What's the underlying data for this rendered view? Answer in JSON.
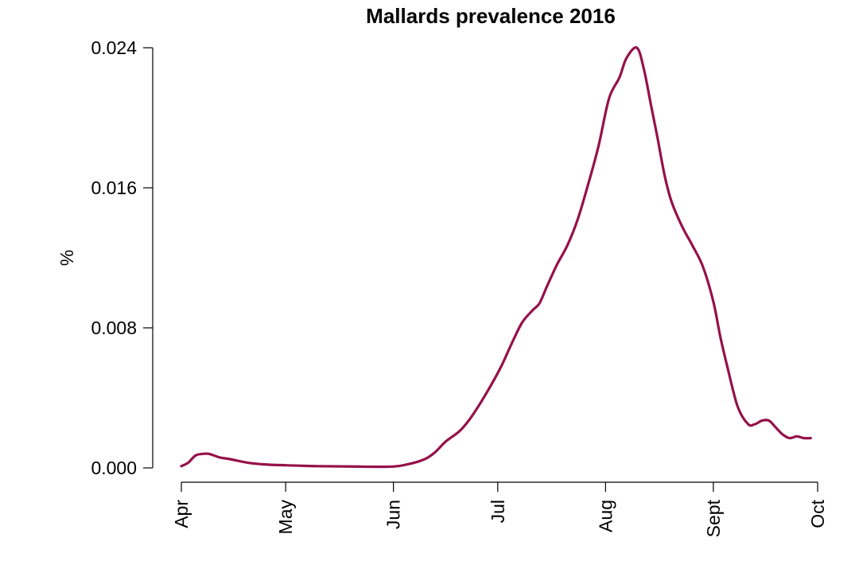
{
  "chart_data": {
    "type": "line",
    "title": "Mallards prevalence 2016",
    "xlabel": "",
    "ylabel": "%",
    "x_ticks": [
      "Apr",
      "May",
      "Jun",
      "Jul",
      "Aug",
      "Sept",
      "Oct"
    ],
    "x_tick_dates": [
      "2016-04-01",
      "2016-05-01",
      "2016-06-01",
      "2016-07-01",
      "2016-08-01",
      "2016-09-01",
      "2016-10-01"
    ],
    "y_ticks": [
      "0.000",
      "0.008",
      "0.016",
      "0.024"
    ],
    "y_tick_values": [
      0,
      0.008,
      0.016,
      0.024
    ],
    "xlim": [
      "2016-04-01",
      "2016-10-01"
    ],
    "ylim": [
      0,
      0.024
    ],
    "grid": false,
    "legend": "none",
    "color": "#95114a",
    "series": [
      {
        "x": [
          "2016-04-01",
          "2016-04-03",
          "2016-04-05",
          "2016-04-07",
          "2016-04-09",
          "2016-04-12",
          "2016-04-15",
          "2016-04-20",
          "2016-04-25",
          "2016-05-01",
          "2016-05-10",
          "2016-05-20",
          "2016-05-31",
          "2016-06-05",
          "2016-06-10",
          "2016-06-13",
          "2016-06-16",
          "2016-06-20",
          "2016-06-23",
          "2016-06-26",
          "2016-06-29",
          "2016-07-02",
          "2016-07-05",
          "2016-07-08",
          "2016-07-11",
          "2016-07-13",
          "2016-07-15",
          "2016-07-18",
          "2016-07-21",
          "2016-07-24",
          "2016-07-27",
          "2016-07-30",
          "2016-08-02",
          "2016-08-05",
          "2016-08-07",
          "2016-08-10",
          "2016-08-12",
          "2016-08-14",
          "2016-08-15",
          "2016-08-16",
          "2016-08-18",
          "2016-08-20",
          "2016-08-23",
          "2016-08-26",
          "2016-08-29",
          "2016-09-01",
          "2016-09-03",
          "2016-09-05",
          "2016-09-08",
          "2016-09-11",
          "2016-09-13",
          "2016-09-15",
          "2016-09-17",
          "2016-09-19",
          "2016-09-21",
          "2016-09-23",
          "2016-09-25",
          "2016-09-27",
          "2016-09-29"
        ],
        "y": [
          0.0001,
          0.0003,
          0.0007,
          0.0008,
          0.0008,
          0.0006,
          0.0005,
          0.0003,
          0.0002,
          0.00015,
          0.0001,
          8e-05,
          7e-05,
          0.0002,
          0.0005,
          0.0009,
          0.0015,
          0.0021,
          0.0028,
          0.0037,
          0.0047,
          0.0058,
          0.0071,
          0.0083,
          0.009,
          0.0094,
          0.0103,
          0.0116,
          0.0127,
          0.0142,
          0.0162,
          0.0184,
          0.0211,
          0.0223,
          0.0234,
          0.024,
          0.0228,
          0.0208,
          0.0198,
          0.0188,
          0.0167,
          0.0152,
          0.0138,
          0.0127,
          0.0115,
          0.0095,
          0.0075,
          0.0058,
          0.0035,
          0.0025,
          0.0025,
          0.0027,
          0.0027,
          0.0023,
          0.0019,
          0.0017,
          0.0018,
          0.0017,
          0.0017
        ]
      }
    ]
  }
}
